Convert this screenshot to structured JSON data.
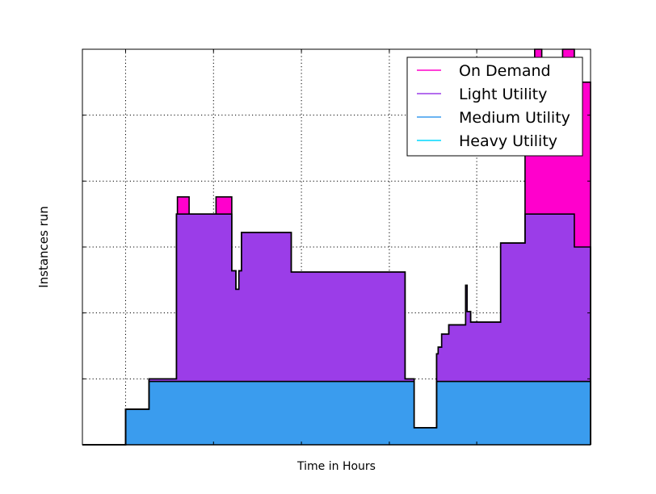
{
  "chart_data": {
    "type": "area",
    "title": "",
    "xlabel": "Time in Hours",
    "ylabel": "Instances run",
    "xlim": [
      0,
      100
    ],
    "ylim": [
      0,
      30
    ],
    "grid": true,
    "legend_position": "top-right",
    "y_gridlines": [
      5,
      10,
      15,
      20,
      25
    ],
    "x_gridlines": [
      8.5,
      25.8,
      43.1,
      60.4,
      77.6
    ],
    "colors": {
      "On Demand": "#ff00cc",
      "Light Utility": "#9b3de8",
      "Medium Utility": "#3a9cee",
      "Heavy Utility": "#00d8ff"
    },
    "series": [
      {
        "name": "On Demand",
        "x": [
          0,
          8.5,
          12.9,
          13.1,
          15.3,
          18.5,
          18.7,
          20.4,
          21.0,
          24.5,
          26.3,
          28.4,
          29.4,
          30.2,
          30.8,
          31.3,
          34.0,
          41.1,
          43.6,
          46.3,
          51.0,
          56.9,
          63.2,
          63.5,
          63.9,
          65.3,
          66.1,
          69.7,
          70.0,
          70.7,
          72.1,
          72.8,
          75.4,
          75.7,
          76.4,
          82.3,
          87.1,
          87.8,
          88.4,
          89.0,
          89.6,
          90.4,
          93.6,
          94.5,
          95.3,
          96.8,
          100
        ],
        "y": [
          0,
          2.7,
          2.7,
          5.0,
          5.0,
          17.5,
          18.8,
          18.8,
          17.5,
          17.5,
          18.8,
          18.8,
          13.2,
          11.8,
          13.2,
          16.1,
          16.1,
          13.1,
          13.1,
          13.1,
          13.1,
          13.1,
          13.1,
          5.0,
          5.0,
          1.3,
          1.3,
          6.9,
          7.4,
          8.4,
          9.1,
          9.1,
          12.1,
          10.1,
          9.3,
          15.3,
          22.0,
          25.0,
          25.0,
          30.0,
          30.0,
          28.0,
          28.0,
          30.0,
          30.0,
          27.5,
          0
        ]
      },
      {
        "name": "Light Utility",
        "x": [
          0,
          8.5,
          12.9,
          13.1,
          15.3,
          18.5,
          18.7,
          20.4,
          21.0,
          24.5,
          26.3,
          28.4,
          29.4,
          30.2,
          30.8,
          31.3,
          34.0,
          41.1,
          43.6,
          46.3,
          51.0,
          56.9,
          63.2,
          63.5,
          63.9,
          65.3,
          66.1,
          69.7,
          70.0,
          70.7,
          72.1,
          72.8,
          75.4,
          75.7,
          76.4,
          82.3,
          87.1,
          87.8,
          88.4,
          89.0,
          89.6,
          90.4,
          93.6,
          94.5,
          95.3,
          96.8,
          100
        ],
        "y": [
          0,
          2.7,
          2.7,
          5.0,
          5.0,
          17.5,
          17.5,
          17.5,
          17.5,
          17.5,
          17.5,
          17.5,
          13.2,
          11.8,
          13.2,
          16.1,
          16.1,
          13.1,
          13.1,
          13.1,
          13.1,
          13.1,
          13.1,
          5.0,
          5.0,
          1.3,
          1.3,
          6.9,
          7.4,
          8.4,
          9.1,
          9.1,
          12.1,
          10.1,
          9.3,
          15.3,
          17.5,
          17.5,
          17.5,
          17.5,
          17.5,
          17.5,
          17.5,
          17.5,
          17.5,
          15.0,
          0
        ]
      },
      {
        "name": "Medium Utility",
        "x": [
          0,
          8.5,
          12.9,
          13.1,
          15.3,
          18.5,
          18.7,
          20.4,
          21.0,
          24.5,
          26.3,
          28.4,
          29.4,
          30.2,
          30.8,
          31.3,
          34.0,
          41.1,
          43.6,
          46.3,
          51.0,
          56.9,
          63.2,
          63.5,
          63.9,
          65.3,
          66.1,
          69.7,
          70.0,
          70.7,
          72.1,
          72.8,
          75.4,
          75.7,
          76.4,
          82.3,
          87.1,
          87.8,
          88.4,
          89.0,
          89.6,
          90.4,
          93.6,
          94.5,
          95.3,
          96.8,
          100
        ],
        "y": [
          0,
          2.7,
          2.7,
          4.8,
          4.8,
          4.8,
          4.8,
          4.8,
          4.8,
          4.8,
          4.8,
          4.8,
          4.8,
          4.8,
          4.8,
          4.8,
          4.8,
          4.8,
          4.8,
          4.8,
          4.8,
          4.8,
          4.8,
          4.8,
          4.8,
          1.3,
          1.3,
          4.8,
          4.8,
          4.8,
          4.8,
          4.8,
          4.8,
          4.8,
          4.8,
          4.8,
          4.8,
          4.8,
          4.8,
          4.8,
          4.8,
          4.8,
          4.8,
          4.8,
          4.8,
          4.8,
          0
        ]
      },
      {
        "name": "Heavy Utility",
        "x": [
          0,
          100
        ],
        "y": [
          0,
          0
        ]
      }
    ]
  }
}
